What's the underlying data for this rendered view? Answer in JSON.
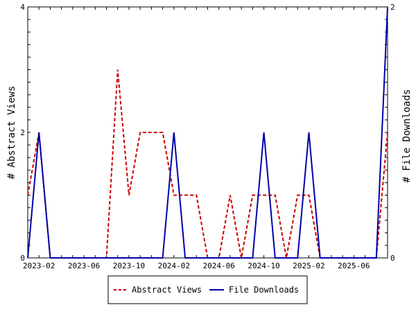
{
  "chart_data": {
    "type": "line",
    "title": "",
    "xlabel": "",
    "ylabel_left": "# Abstract Views",
    "ylabel_right": "# File Downloads",
    "ylim_left": [
      0,
      4
    ],
    "ylim_right": [
      0,
      2
    ],
    "yticks_left": [
      "0",
      "2",
      "4"
    ],
    "yticks_right": [
      "0",
      "2"
    ],
    "x": [
      "2023-01",
      "2023-02",
      "2023-03",
      "2023-04",
      "2023-05",
      "2023-06",
      "2023-07",
      "2023-08",
      "2023-09",
      "2023-10",
      "2023-11",
      "2023-12",
      "2024-01",
      "2024-02",
      "2024-03",
      "2024-04",
      "2024-05",
      "2024-06",
      "2024-07",
      "2024-08",
      "2024-09",
      "2024-10",
      "2024-11",
      "2024-12",
      "2025-01",
      "2025-02",
      "2025-03",
      "2025-04",
      "2025-05",
      "2025-06",
      "2025-07",
      "2025-08",
      "2025-09"
    ],
    "xtick_labels": [
      "2023-02",
      "2023-06",
      "2023-10",
      "2024-02",
      "2024-06",
      "2024-10",
      "2025-02",
      "2025-06"
    ],
    "series": [
      {
        "name": "Abstract Views",
        "axis": "left",
        "color": "#cc0000",
        "dash": "dashed",
        "values": [
          1,
          2,
          0,
          0,
          0,
          0,
          0,
          0,
          3,
          1,
          2,
          2,
          2,
          1,
          1,
          1,
          0,
          0,
          1,
          0,
          1,
          1,
          1,
          0,
          1,
          1,
          0,
          0,
          0,
          0,
          0,
          0,
          2
        ]
      },
      {
        "name": "File Downloads",
        "axis": "right",
        "color": "#0000aa",
        "dash": "solid",
        "values": [
          0,
          1,
          0,
          0,
          0,
          0,
          0,
          0,
          0,
          0,
          0,
          0,
          0,
          1,
          0,
          0,
          0,
          0,
          0,
          0,
          0,
          1,
          0,
          0,
          0,
          1,
          0,
          0,
          0,
          0,
          0,
          0,
          2
        ]
      }
    ],
    "legend_position": "bottom-center",
    "grid": false
  }
}
